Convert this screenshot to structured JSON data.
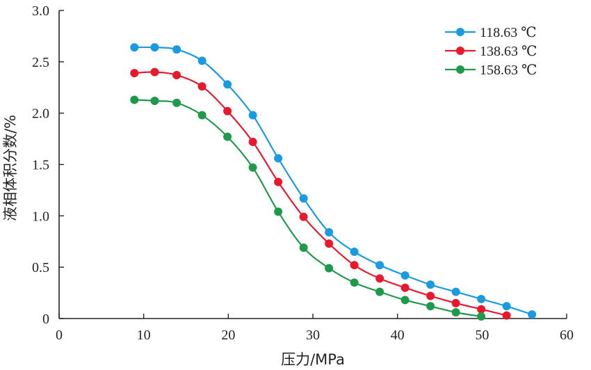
{
  "chart_data": {
    "type": "line",
    "xlabel": "压力/MPa",
    "ylabel": "液相体积分数/%",
    "xlim": [
      0,
      60
    ],
    "ylim": [
      0,
      3.0
    ],
    "x_ticks": [
      "0",
      "10",
      "20",
      "30",
      "40",
      "50",
      "60"
    ],
    "y_ticks": [
      "0",
      "0.5",
      "1.0",
      "1.5",
      "2.0",
      "2.5",
      "3.0"
    ],
    "grid": false,
    "legend_position": "top-right",
    "series": [
      {
        "name": "118.63 ℃",
        "color": "#1a9ae0",
        "x": [
          8.9,
          11.3,
          13.9,
          16.9,
          19.9,
          22.9,
          25.9,
          28.9,
          31.9,
          34.9,
          37.9,
          40.9,
          43.9,
          46.9,
          49.9,
          52.9,
          55.9
        ],
        "y": [
          2.64,
          2.64,
          2.62,
          2.51,
          2.28,
          1.98,
          1.56,
          1.17,
          0.84,
          0.65,
          0.52,
          0.42,
          0.33,
          0.26,
          0.19,
          0.12,
          0.04
        ]
      },
      {
        "name": "138.63 ℃",
        "color": "#e8192c",
        "x": [
          8.9,
          11.3,
          13.9,
          16.9,
          19.9,
          22.9,
          25.9,
          28.9,
          31.9,
          34.9,
          37.9,
          40.9,
          43.9,
          46.9,
          49.9,
          52.9
        ],
        "y": [
          2.39,
          2.4,
          2.37,
          2.26,
          2.02,
          1.72,
          1.33,
          0.99,
          0.73,
          0.52,
          0.39,
          0.3,
          0.22,
          0.15,
          0.09,
          0.03
        ]
      },
      {
        "name": "158.63 ℃",
        "color": "#1f9a4b",
        "x": [
          8.9,
          11.3,
          13.9,
          16.9,
          19.9,
          22.9,
          25.9,
          28.9,
          31.9,
          34.9,
          37.9,
          40.9,
          43.9,
          46.9,
          49.9
        ],
        "y": [
          2.13,
          2.12,
          2.1,
          1.98,
          1.77,
          1.47,
          1.04,
          0.69,
          0.49,
          0.35,
          0.26,
          0.18,
          0.12,
          0.06,
          0.02
        ]
      }
    ]
  }
}
